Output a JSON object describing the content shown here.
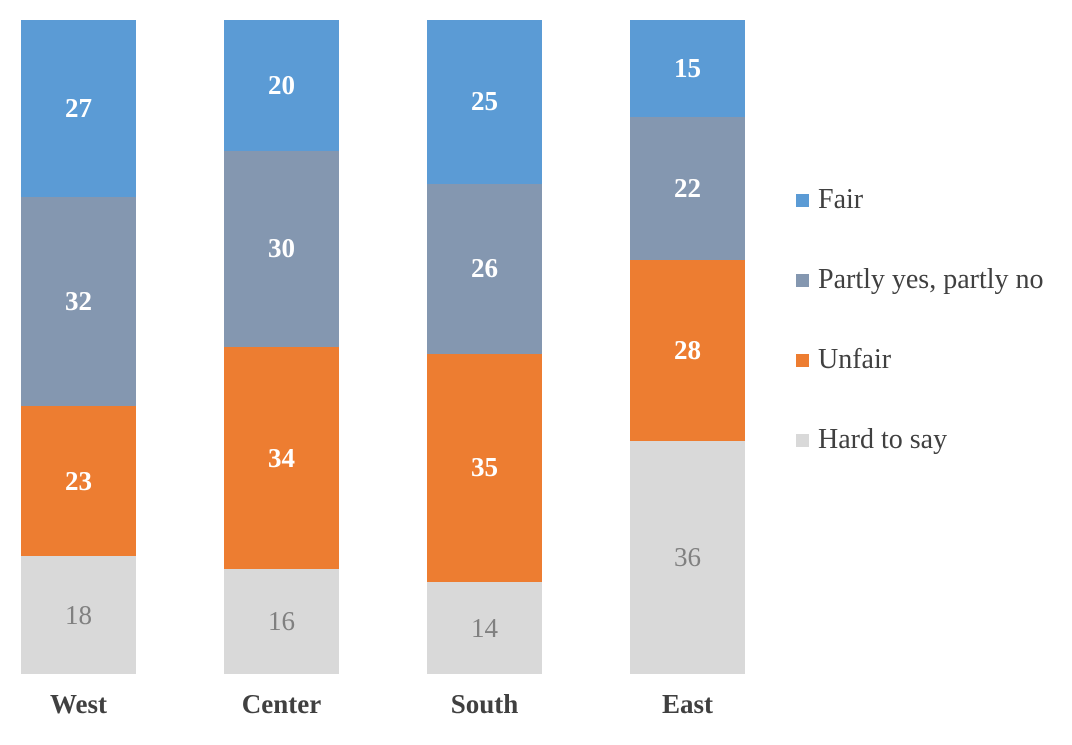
{
  "chart_data": {
    "type": "bar",
    "variant": "stacked-column-100",
    "title": "",
    "categories": [
      "West",
      "Center",
      "South",
      "East"
    ],
    "series": [
      {
        "name": "Fair",
        "color": "#5B9BD5",
        "label_color": "#FFFFFF",
        "label_bold": true,
        "values": [
          27,
          20,
          25,
          15
        ]
      },
      {
        "name": "Partly yes, partly no",
        "color": "#8497B0",
        "label_color": "#FFFFFF",
        "label_bold": true,
        "values": [
          32,
          30,
          26,
          22
        ]
      },
      {
        "name": "Unfair",
        "color": "#ED7D31",
        "label_color": "#FFFFFF",
        "label_bold": true,
        "values": [
          23,
          34,
          35,
          28
        ]
      },
      {
        "name": "Hard to say",
        "color": "#D9D9D9",
        "label_color": "#808080",
        "label_bold": false,
        "values": [
          18,
          16,
          14,
          36
        ]
      }
    ],
    "data_labels": true,
    "grid": false,
    "axes_visible": false,
    "legend_position": "right",
    "category_label_color": "#404040",
    "background": "#FFFFFF"
  }
}
